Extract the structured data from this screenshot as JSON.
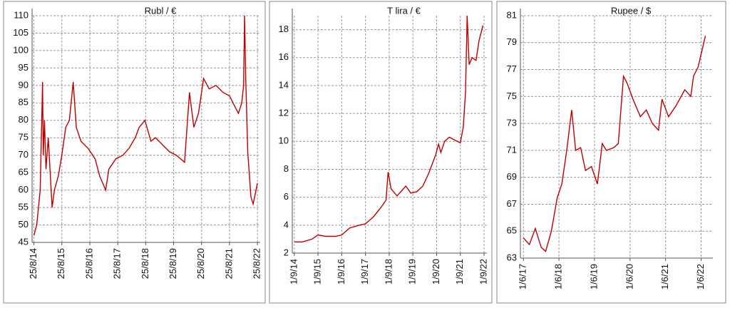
{
  "chart_data": [
    {
      "type": "line",
      "title": "Rubl / €",
      "ylim": [
        45,
        110
      ],
      "yticks": [
        45,
        50,
        55,
        60,
        65,
        70,
        75,
        80,
        85,
        90,
        95,
        100,
        105,
        110
      ],
      "xlim": [
        "2014-08-01",
        "2022-09-30"
      ],
      "xticks": [
        {
          "value": "2014-08-25",
          "label": "25/8/14"
        },
        {
          "value": "2015-08-25",
          "label": "25/8/15"
        },
        {
          "value": "2016-08-25",
          "label": "25/8/16"
        },
        {
          "value": "2017-08-25",
          "label": "25/8/17"
        },
        {
          "value": "2018-08-25",
          "label": "25/8/18"
        },
        {
          "value": "2019-08-25",
          "label": "25/8/19"
        },
        {
          "value": "2020-08-25",
          "label": "25/8/20"
        },
        {
          "value": "2021-08-25",
          "label": "25/8/21"
        },
        {
          "value": "2022-08-25",
          "label": "25/8/22"
        }
      ],
      "grid": true,
      "x": [
        "2014-08-25",
        "2014-10-01",
        "2014-11-15",
        "2014-12-16",
        "2014-12-25",
        "2015-01-10",
        "2015-01-30",
        "2015-03-01",
        "2015-04-20",
        "2015-05-20",
        "2015-07-10",
        "2015-08-25",
        "2015-10-15",
        "2015-12-01",
        "2016-01-21",
        "2016-03-01",
        "2016-05-01",
        "2016-08-01",
        "2016-11-01",
        "2017-01-01",
        "2017-03-20",
        "2017-05-01",
        "2017-08-01",
        "2017-11-01",
        "2018-01-20",
        "2018-04-10",
        "2018-06-01",
        "2018-08-15",
        "2018-11-01",
        "2019-01-01",
        "2019-04-01",
        "2019-07-01",
        "2019-10-01",
        "2020-01-15",
        "2020-03-20",
        "2020-05-15",
        "2020-07-15",
        "2020-09-20",
        "2020-12-01",
        "2021-03-01",
        "2021-06-01",
        "2021-08-25",
        "2021-11-01",
        "2021-12-20",
        "2022-02-01",
        "2022-02-25",
        "2022-03-10",
        "2022-03-25",
        "2022-04-20",
        "2022-06-01",
        "2022-06-30",
        "2022-08-25"
      ],
      "series": [
        {
          "name": "Rubl / €",
          "color": "#c00000",
          "values": [
            47,
            50,
            60,
            91,
            70,
            80,
            66,
            75,
            55,
            60,
            64,
            70,
            78,
            80,
            91,
            78,
            74,
            72,
            69,
            64,
            60,
            66,
            69,
            70,
            72,
            75,
            78,
            80,
            74,
            75,
            73,
            71,
            70,
            68,
            88,
            78,
            82,
            92,
            89,
            90,
            88,
            87,
            84,
            82,
            85,
            90,
            110,
            92,
            71,
            58,
            56,
            62
          ]
        }
      ]
    },
    {
      "type": "line",
      "title": "T lira / €",
      "ylim": [
        2,
        19
      ],
      "yticks": [
        2,
        4,
        6,
        8,
        10,
        12,
        14,
        16,
        18
      ],
      "xlim": [
        "2014-08-01",
        "2022-10-15"
      ],
      "xticks": [
        {
          "value": "2014-09-01",
          "label": "1/9/14"
        },
        {
          "value": "2015-09-01",
          "label": "1/9/15"
        },
        {
          "value": "2016-09-01",
          "label": "1/9/16"
        },
        {
          "value": "2017-09-01",
          "label": "1/9/17"
        },
        {
          "value": "2018-09-01",
          "label": "1/9/18"
        },
        {
          "value": "2019-09-01",
          "label": "1/9/19"
        },
        {
          "value": "2020-09-01",
          "label": "1/9/20"
        },
        {
          "value": "2021-09-01",
          "label": "1/9/21"
        },
        {
          "value": "2022-09-01",
          "label": "1/9/22"
        }
      ],
      "grid": true,
      "x": [
        "2014-09-01",
        "2015-01-01",
        "2015-06-01",
        "2015-09-01",
        "2016-01-01",
        "2016-06-01",
        "2016-09-01",
        "2017-01-01",
        "2017-06-01",
        "2017-09-01",
        "2018-01-01",
        "2018-05-01",
        "2018-07-15",
        "2018-08-15",
        "2018-10-01",
        "2019-01-01",
        "2019-05-15",
        "2019-08-01",
        "2019-11-01",
        "2020-02-01",
        "2020-05-01",
        "2020-08-15",
        "2020-10-01",
        "2020-11-05",
        "2021-01-01",
        "2021-03-15",
        "2021-06-01",
        "2021-09-01",
        "2021-10-15",
        "2021-11-20",
        "2021-12-15",
        "2022-01-15",
        "2022-03-01",
        "2022-05-01",
        "2022-06-15",
        "2022-08-15"
      ],
      "series": [
        {
          "name": "T lira / €",
          "color": "#c00000",
          "values": [
            2.8,
            2.8,
            3.0,
            3.3,
            3.2,
            3.2,
            3.3,
            3.8,
            4.0,
            4.1,
            4.6,
            5.3,
            5.8,
            7.8,
            6.6,
            6.1,
            6.8,
            6.3,
            6.4,
            6.8,
            7.7,
            9.0,
            9.8,
            9.2,
            10.0,
            10.3,
            10.1,
            9.9,
            11.0,
            13.5,
            19.0,
            15.5,
            16.0,
            15.8,
            17.2,
            18.3
          ]
        }
      ]
    },
    {
      "type": "line",
      "title": "Rupee / $",
      "ylim": [
        63,
        81
      ],
      "yticks": [
        63,
        65,
        67,
        69,
        71,
        73,
        75,
        77,
        79,
        81
      ],
      "xlim": [
        "2017-05-01",
        "2022-09-30"
      ],
      "xticks": [
        {
          "value": "2017-06-01",
          "label": "1/6/17"
        },
        {
          "value": "2018-06-01",
          "label": "1/6/18"
        },
        {
          "value": "2019-06-01",
          "label": "1/6/19"
        },
        {
          "value": "2020-06-01",
          "label": "1/6/20"
        },
        {
          "value": "2021-06-01",
          "label": "1/6/21"
        },
        {
          "value": "2022-06-01",
          "label": "1/6/22"
        }
      ],
      "grid": true,
      "x": [
        "2017-06-01",
        "2017-08-01",
        "2017-10-01",
        "2017-12-01",
        "2018-01-15",
        "2018-03-15",
        "2018-05-15",
        "2018-07-01",
        "2018-08-20",
        "2018-10-10",
        "2018-11-20",
        "2019-01-10",
        "2019-03-01",
        "2019-05-01",
        "2019-07-01",
        "2019-08-20",
        "2019-10-01",
        "2019-12-15",
        "2020-02-01",
        "2020-03-25",
        "2020-05-01",
        "2020-07-01",
        "2020-09-15",
        "2020-11-15",
        "2021-01-15",
        "2021-03-20",
        "2021-04-25",
        "2021-07-01",
        "2021-09-15",
        "2021-12-15",
        "2022-02-15",
        "2022-03-15",
        "2022-05-01",
        "2022-07-15"
      ],
      "series": [
        {
          "name": "Rupee / $",
          "color": "#c00000",
          "values": [
            64.5,
            64.0,
            65.2,
            63.8,
            63.5,
            65.0,
            67.5,
            68.5,
            71.0,
            74.0,
            71.0,
            71.2,
            69.5,
            69.8,
            68.5,
            71.5,
            71.0,
            71.2,
            71.5,
            76.5,
            76.0,
            74.8,
            73.5,
            74.0,
            73.0,
            72.5,
            74.8,
            73.5,
            74.3,
            75.5,
            75.0,
            76.5,
            77.2,
            79.5
          ]
        }
      ]
    }
  ]
}
